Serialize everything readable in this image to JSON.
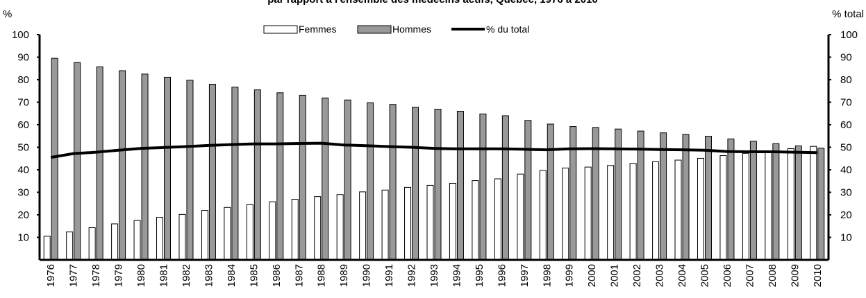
{
  "chart_data": {
    "type": "bar",
    "title": "par rapport à l'ensemble des médecins actifs, Québec, 1976 à 2010",
    "ylabel_left": "%",
    "ylabel_right": "% total",
    "ylim": [
      0,
      100
    ],
    "yticks": [
      10,
      20,
      30,
      40,
      50,
      60,
      70,
      80,
      90,
      100
    ],
    "legend_position": "top-center",
    "categories": [
      "1976",
      "1977",
      "1978",
      "1979",
      "1980",
      "1981",
      "1982",
      "1983",
      "1984",
      "1985",
      "1986",
      "1987",
      "1988",
      "1989",
      "1990",
      "1991",
      "1992",
      "1993",
      "1994",
      "1995",
      "1996",
      "1997",
      "1998",
      "1999",
      "2000",
      "2001",
      "2002",
      "2003",
      "2004",
      "2005",
      "2006",
      "2007",
      "2008",
      "2009",
      "2010"
    ],
    "series": [
      {
        "name": "Femmes",
        "kind": "bar",
        "color": "#ffffff",
        "values": [
          10.5,
          12.4,
          14.3,
          16.0,
          17.5,
          18.9,
          20.2,
          22.0,
          23.3,
          24.5,
          25.8,
          26.9,
          28.1,
          29.0,
          30.2,
          31.0,
          32.2,
          33.1,
          34.0,
          35.2,
          36.0,
          38.1,
          39.7,
          40.8,
          41.2,
          41.9,
          42.8,
          43.6,
          44.3,
          45.1,
          46.3,
          47.3,
          48.4,
          49.4,
          50.4
        ]
      },
      {
        "name": "Hommes",
        "kind": "bar",
        "color": "#999999",
        "values": [
          89.5,
          87.6,
          85.7,
          84.0,
          82.5,
          81.1,
          79.8,
          78.0,
          76.7,
          75.5,
          74.2,
          73.1,
          71.9,
          71.0,
          69.8,
          69.0,
          67.8,
          66.9,
          66.0,
          64.8,
          64.0,
          61.9,
          60.3,
          59.2,
          58.8,
          58.1,
          57.2,
          56.4,
          55.7,
          54.9,
          53.7,
          52.7,
          51.6,
          50.6,
          49.6
        ]
      },
      {
        "name": "% du total",
        "kind": "line",
        "color": "#000000",
        "values": [
          45.5,
          47.2,
          47.8,
          48.7,
          49.5,
          49.9,
          50.3,
          50.8,
          51.2,
          51.5,
          51.5,
          51.7,
          51.8,
          51.0,
          50.7,
          50.3,
          50.0,
          49.5,
          49.3,
          49.3,
          49.3,
          49.1,
          48.9,
          49.3,
          49.4,
          49.3,
          49.2,
          49.0,
          48.9,
          48.7,
          48.1,
          48.0,
          48.0,
          47.8,
          47.6
        ]
      }
    ]
  }
}
